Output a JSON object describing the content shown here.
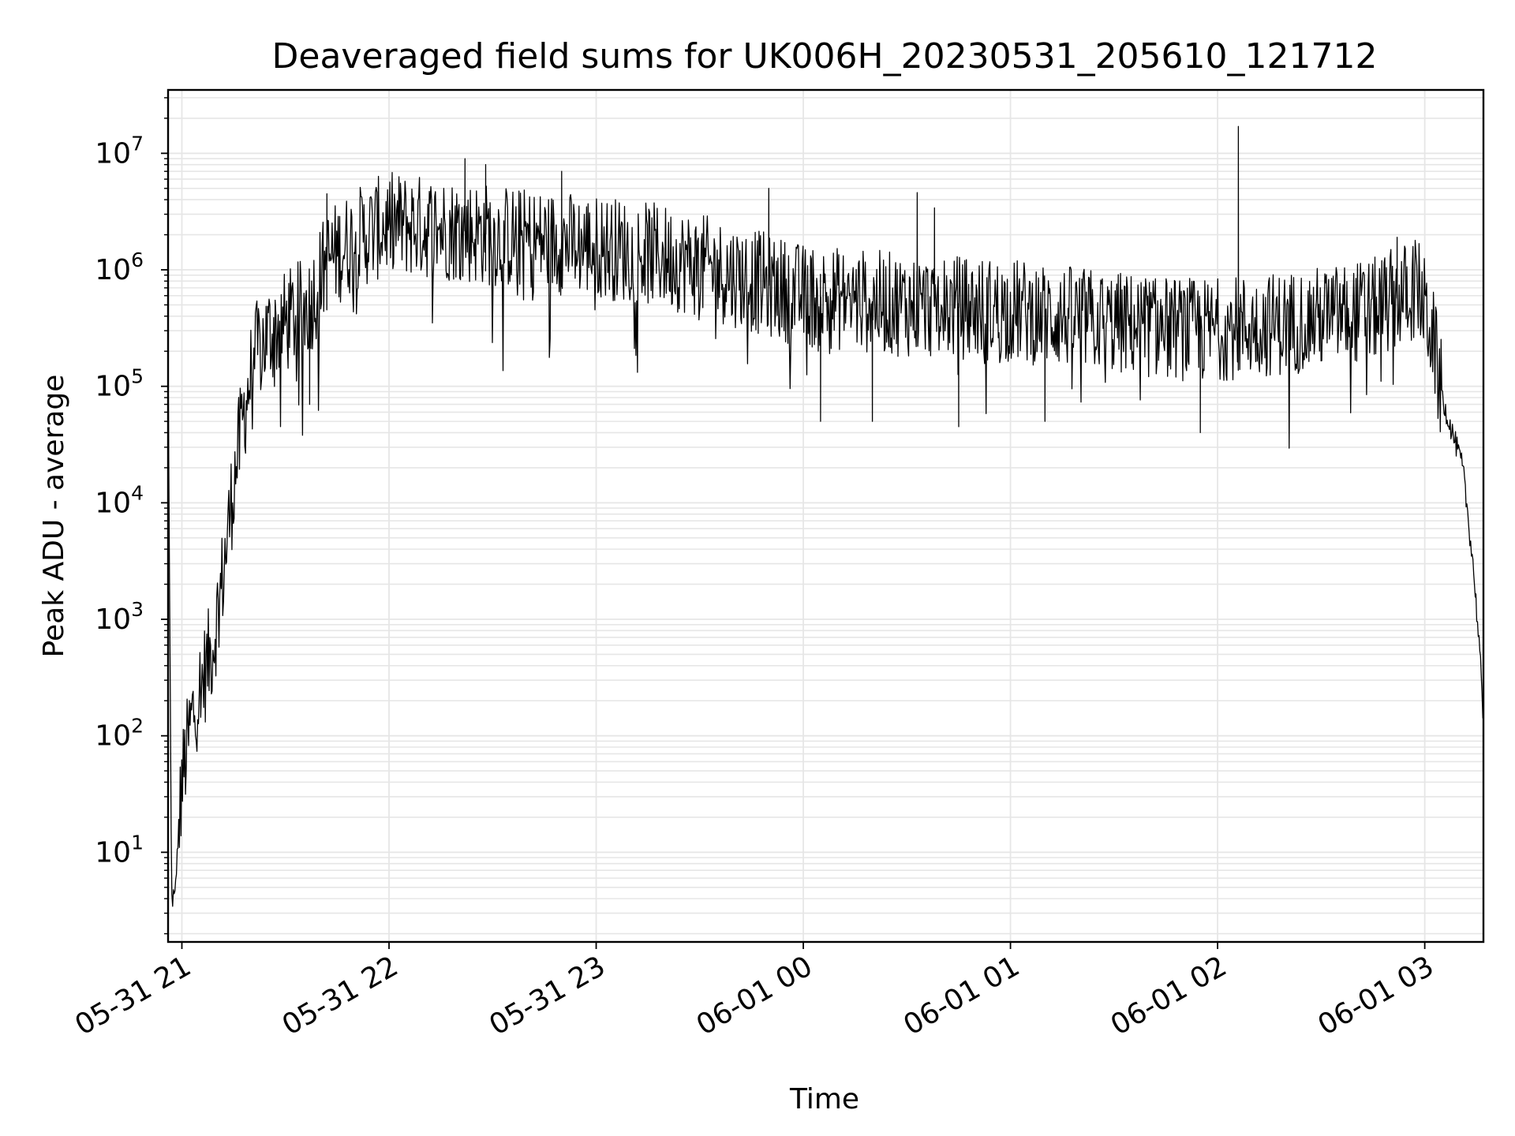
{
  "chart_data": {
    "type": "line",
    "title": "Deaveraged field sums for UK006H_20230531_205610_121712",
    "xlabel": "Time",
    "ylabel": "Peak ADU - average",
    "yscale": "log",
    "xlim": [
      "2023-05-31 20:56",
      "2023-06-01 03:17"
    ],
    "ylim": [
      1.7,
      35000000
    ],
    "grid": true,
    "line_color": "#000000",
    "grid_color": "#e6e6e6",
    "x_ticks": [
      {
        "label": "05-31 21",
        "time": "2023-05-31 21:00"
      },
      {
        "label": "05-31 22",
        "time": "2023-05-31 22:00"
      },
      {
        "label": "05-31 23",
        "time": "2023-05-31 23:00"
      },
      {
        "label": "06-01 00",
        "time": "2023-06-01 00:00"
      },
      {
        "label": "06-01 01",
        "time": "2023-06-01 01:00"
      },
      {
        "label": "06-01 02",
        "time": "2023-06-01 02:00"
      },
      {
        "label": "06-01 03",
        "time": "2023-06-01 03:00"
      }
    ],
    "y_ticks": [
      {
        "base": "10",
        "exp": "1",
        "value": 10
      },
      {
        "base": "10",
        "exp": "2",
        "value": 100
      },
      {
        "base": "10",
        "exp": "3",
        "value": 1000
      },
      {
        "base": "10",
        "exp": "4",
        "value": 10000
      },
      {
        "base": "10",
        "exp": "5",
        "value": 100000
      },
      {
        "base": "10",
        "exp": "6",
        "value": 1000000
      },
      {
        "base": "10",
        "exp": "7",
        "value": 10000000
      }
    ],
    "series": [
      {
        "noise_spread_dex": 0.45,
        "points": [
          {
            "t": "2023-05-31 20:56",
            "y": 200000
          },
          {
            "t": "2023-05-31 20:57",
            "y": 4
          },
          {
            "t": "2023-05-31 20:58",
            "y": 4
          },
          {
            "t": "2023-05-31 20:59",
            "y": 15
          },
          {
            "t": "2023-05-31 21:00",
            "y": 40
          },
          {
            "t": "2023-05-31 21:03",
            "y": 150
          },
          {
            "t": "2023-05-31 21:06",
            "y": 300
          },
          {
            "t": "2023-05-31 21:09",
            "y": 600
          },
          {
            "t": "2023-05-31 21:12",
            "y": 2500
          },
          {
            "t": "2023-05-31 21:15",
            "y": 15000
          },
          {
            "t": "2023-05-31 21:18",
            "y": 60000
          },
          {
            "t": "2023-05-31 21:21",
            "y": 180000
          },
          {
            "t": "2023-05-31 21:25",
            "y": 280000
          },
          {
            "t": "2023-05-31 21:30",
            "y": 350000
          },
          {
            "t": "2023-05-31 21:37",
            "y": 500000
          },
          {
            "t": "2023-05-31 21:42",
            "y": 1200000
          },
          {
            "t": "2023-05-31 21:50",
            "y": 1800000
          },
          {
            "t": "2023-05-31 22:00",
            "y": 2500000
          },
          {
            "t": "2023-05-31 22:20",
            "y": 2200000
          },
          {
            "t": "2023-05-31 22:40",
            "y": 1800000
          },
          {
            "t": "2023-05-31 23:00",
            "y": 1600000
          },
          {
            "t": "2023-05-31 23:20",
            "y": 1300000
          },
          {
            "t": "2023-05-31 23:40",
            "y": 900000
          },
          {
            "t": "2023-06-01 00:00",
            "y": 600000
          },
          {
            "t": "2023-06-01 00:30",
            "y": 500000
          },
          {
            "t": "2023-06-01 01:00",
            "y": 450000
          },
          {
            "t": "2023-06-01 01:30",
            "y": 350000
          },
          {
            "t": "2023-06-01 01:55",
            "y": 300000
          },
          {
            "t": "2023-06-01 02:20",
            "y": 350000
          },
          {
            "t": "2023-06-01 02:45",
            "y": 450000
          },
          {
            "t": "2023-06-01 02:58",
            "y": 700000
          },
          {
            "t": "2023-06-01 03:02",
            "y": 300000
          },
          {
            "t": "2023-06-01 03:05",
            "y": 80000
          },
          {
            "t": "2023-06-01 03:08",
            "y": 40000
          },
          {
            "t": "2023-06-01 03:11",
            "y": 20000
          },
          {
            "t": "2023-06-01 03:14",
            "y": 3000
          },
          {
            "t": "2023-06-01 03:16",
            "y": 500
          },
          {
            "t": "2023-06-01 03:17",
            "y": 100
          }
        ],
        "spikes": [
          {
            "t": "2023-05-31 21:37",
            "y": 70000
          },
          {
            "t": "2023-05-31 21:42",
            "y": 4500000
          },
          {
            "t": "2023-05-31 22:22",
            "y": 9000000
          },
          {
            "t": "2023-05-31 22:28",
            "y": 8000000
          },
          {
            "t": "2023-05-31 22:50",
            "y": 7000000
          },
          {
            "t": "2023-05-31 23:50",
            "y": 5000000
          },
          {
            "t": "2023-06-01 00:05",
            "y": 50000
          },
          {
            "t": "2023-06-01 00:20",
            "y": 50000
          },
          {
            "t": "2023-06-01 00:33",
            "y": 4600000
          },
          {
            "t": "2023-06-01 00:38",
            "y": 3400000
          },
          {
            "t": "2023-06-01 00:45",
            "y": 45000
          },
          {
            "t": "2023-06-01 01:10",
            "y": 50000
          },
          {
            "t": "2023-06-01 01:55",
            "y": 40000
          },
          {
            "t": "2023-06-01 02:06",
            "y": 17000000
          },
          {
            "t": "2023-06-01 02:52",
            "y": 1900000
          }
        ]
      }
    ]
  }
}
